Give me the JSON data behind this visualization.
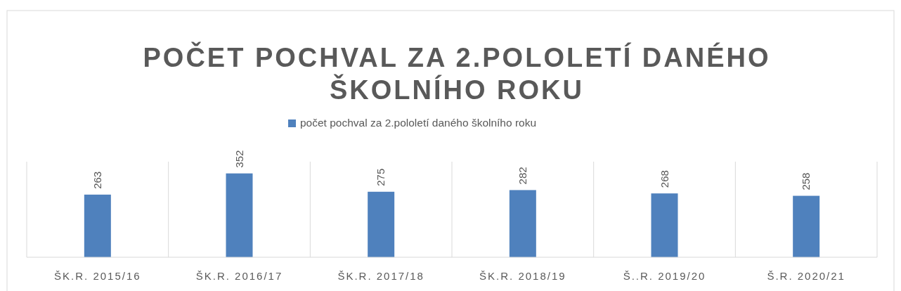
{
  "chart_data": {
    "type": "bar",
    "title": "POČET POCHVAL ZA 2.POLOLETÍ DANÉHO ŠKOLNÍHO ROKU",
    "categories": [
      "ŠK.R. 2015/16",
      "ŠK.R. 2016/17",
      "ŠK.R. 2017/18",
      "ŠK.R. 2018/19",
      "Š..R. 2019/20",
      "Š.R. 2020/21"
    ],
    "series": [
      {
        "name": "počet pochval za 2.pololetí daného školního roku",
        "color": "#4f81bd",
        "values": [
          263,
          352,
          275,
          282,
          268,
          258
        ]
      }
    ],
    "data_labels": true,
    "grid": "x",
    "legend": "top"
  }
}
